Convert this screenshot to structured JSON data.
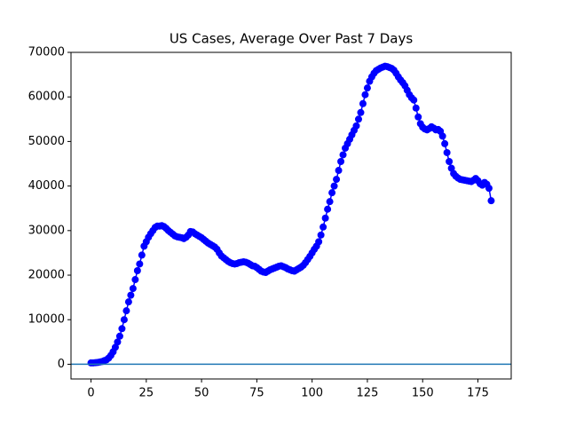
{
  "chart_data": {
    "type": "scatter-line",
    "title": "US Cases, Average Over Past 7 Days",
    "x": [
      0,
      1,
      2,
      3,
      4,
      5,
      6,
      7,
      8,
      9,
      10,
      11,
      12,
      13,
      14,
      15,
      16,
      17,
      18,
      19,
      20,
      21,
      22,
      23,
      24,
      25,
      26,
      27,
      28,
      29,
      30,
      31,
      32,
      33,
      34,
      35,
      36,
      37,
      38,
      39,
      40,
      41,
      42,
      43,
      44,
      45,
      46,
      47,
      48,
      49,
      50,
      51,
      52,
      53,
      54,
      55,
      56,
      57,
      58,
      59,
      60,
      61,
      62,
      63,
      64,
      65,
      66,
      67,
      68,
      69,
      70,
      71,
      72,
      73,
      74,
      75,
      76,
      77,
      78,
      79,
      80,
      81,
      82,
      83,
      84,
      85,
      86,
      87,
      88,
      89,
      90,
      91,
      92,
      93,
      94,
      95,
      96,
      97,
      98,
      99,
      100,
      101,
      102,
      103,
      104,
      105,
      106,
      107,
      108,
      109,
      110,
      111,
      112,
      113,
      114,
      115,
      116,
      117,
      118,
      119,
      120,
      121,
      122,
      123,
      124,
      125,
      126,
      127,
      128,
      129,
      130,
      131,
      132,
      133,
      134,
      135,
      136,
      137,
      138,
      139,
      140,
      141,
      142,
      143,
      144,
      145,
      146,
      147,
      148,
      149,
      150,
      151,
      152,
      153,
      154,
      155,
      156,
      157,
      158,
      159,
      160,
      161,
      162,
      163,
      164,
      165,
      166,
      167,
      168,
      169,
      170,
      171,
      172,
      173,
      174,
      175,
      176,
      177,
      178,
      179,
      180,
      181
    ],
    "series": [
      {
        "color": "#0000ff",
        "values": [
          300,
          300,
          350,
          400,
          500,
          600,
          800,
          1000,
          1400,
          2000,
          2800,
          3800,
          5000,
          6300,
          8000,
          10000,
          12000,
          14000,
          15500,
          17000,
          19000,
          21000,
          22500,
          24500,
          26500,
          27500,
          28500,
          29300,
          30000,
          30700,
          31000,
          31000,
          31100,
          30900,
          30500,
          30000,
          29600,
          29200,
          28800,
          28600,
          28500,
          28400,
          28200,
          28500,
          29000,
          29800,
          29700,
          29300,
          29000,
          28700,
          28400,
          28000,
          27600,
          27200,
          26900,
          26600,
          26300,
          25800,
          25000,
          24300,
          23900,
          23500,
          23100,
          22800,
          22600,
          22500,
          22600,
          22800,
          22900,
          23000,
          22900,
          22700,
          22400,
          22100,
          22000,
          21700,
          21300,
          20900,
          20700,
          20600,
          20900,
          21200,
          21400,
          21600,
          21800,
          22000,
          22100,
          21900,
          21700,
          21400,
          21200,
          21000,
          20900,
          21200,
          21500,
          21800,
          22200,
          22800,
          23500,
          24200,
          25000,
          25800,
          26500,
          27500,
          29000,
          30800,
          32800,
          34800,
          36500,
          38500,
          40000,
          41500,
          43500,
          45500,
          47000,
          48500,
          49500,
          50500,
          51500,
          52500,
          53500,
          55000,
          56500,
          58500,
          60500,
          62000,
          63500,
          64500,
          65300,
          65900,
          66200,
          66500,
          66700,
          66900,
          66800,
          66600,
          66400,
          66000,
          65300,
          64500,
          63800,
          63200,
          62500,
          61500,
          60500,
          59800,
          59300,
          57500,
          55500,
          54000,
          53200,
          52800,
          52600,
          52900,
          53300,
          53000,
          52600,
          52700,
          52300,
          51200,
          49500,
          47500,
          45500,
          44000,
          42800,
          42200,
          41800,
          41500,
          41400,
          41300,
          41200,
          41100,
          41000,
          41300,
          41700,
          41200,
          40500,
          40200,
          40800,
          40400,
          39500,
          36700
        ]
      }
    ],
    "hlines": [
      {
        "y": 0,
        "color": "#1f77b4"
      }
    ],
    "xlim": [
      -9.05,
      190.05
    ],
    "ylim": [
      -3300,
      70000
    ],
    "xticks": [
      0,
      25,
      50,
      75,
      100,
      125,
      150,
      175
    ],
    "yticks": [
      0,
      10000,
      20000,
      30000,
      40000,
      50000,
      60000,
      70000
    ]
  }
}
